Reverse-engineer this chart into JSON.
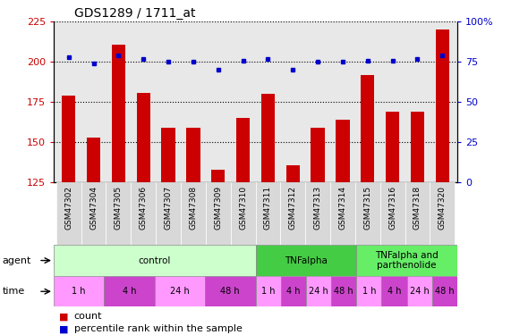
{
  "title": "GDS1289 / 1711_at",
  "samples": [
    "GSM47302",
    "GSM47304",
    "GSM47305",
    "GSM47306",
    "GSM47307",
    "GSM47308",
    "GSM47309",
    "GSM47310",
    "GSM47311",
    "GSM47312",
    "GSM47313",
    "GSM47314",
    "GSM47315",
    "GSM47316",
    "GSM47318",
    "GSM47320"
  ],
  "count_values": [
    179,
    153,
    211,
    181,
    159,
    159,
    133,
    165,
    180,
    136,
    159,
    164,
    192,
    169,
    169,
    220
  ],
  "percentile_values": [
    78,
    74,
    79,
    77,
    75,
    75,
    70,
    76,
    77,
    70,
    75,
    75,
    76,
    76,
    77,
    79
  ],
  "ylim_left": [
    125,
    225
  ],
  "ylim_right": [
    0,
    100
  ],
  "yticks_left": [
    125,
    150,
    175,
    200,
    225
  ],
  "yticks_right": [
    0,
    25,
    50,
    75,
    100
  ],
  "bar_color": "#cc0000",
  "dot_color": "#0000cc",
  "bg_color": "#ffffff",
  "plot_bg_color": "#e8e8e8",
  "agent_groups": [
    {
      "label": "control",
      "start": 0,
      "end": 8,
      "color": "#ccffcc"
    },
    {
      "label": "TNFalpha",
      "start": 8,
      "end": 12,
      "color": "#44cc44"
    },
    {
      "label": "TNFalpha and\nparthenolide",
      "start": 12,
      "end": 16,
      "color": "#66ee66"
    }
  ],
  "time_groups": [
    {
      "label": "1 h",
      "start": 0,
      "end": 2,
      "color": "#ff99ff"
    },
    {
      "label": "4 h",
      "start": 2,
      "end": 4,
      "color": "#cc44cc"
    },
    {
      "label": "24 h",
      "start": 4,
      "end": 6,
      "color": "#ff99ff"
    },
    {
      "label": "48 h",
      "start": 6,
      "end": 8,
      "color": "#cc44cc"
    },
    {
      "label": "1 h",
      "start": 8,
      "end": 9,
      "color": "#ff99ff"
    },
    {
      "label": "4 h",
      "start": 9,
      "end": 10,
      "color": "#cc44cc"
    },
    {
      "label": "24 h",
      "start": 10,
      "end": 11,
      "color": "#ff99ff"
    },
    {
      "label": "48 h",
      "start": 11,
      "end": 12,
      "color": "#cc44cc"
    },
    {
      "label": "1 h",
      "start": 12,
      "end": 13,
      "color": "#ff99ff"
    },
    {
      "label": "4 h",
      "start": 13,
      "end": 14,
      "color": "#cc44cc"
    },
    {
      "label": "24 h",
      "start": 14,
      "end": 15,
      "color": "#ff99ff"
    },
    {
      "label": "48 h",
      "start": 15,
      "end": 16,
      "color": "#cc44cc"
    }
  ],
  "legend_count_label": "count",
  "legend_pct_label": "percentile rank within the sample",
  "agent_label": "agent",
  "time_label": "time"
}
